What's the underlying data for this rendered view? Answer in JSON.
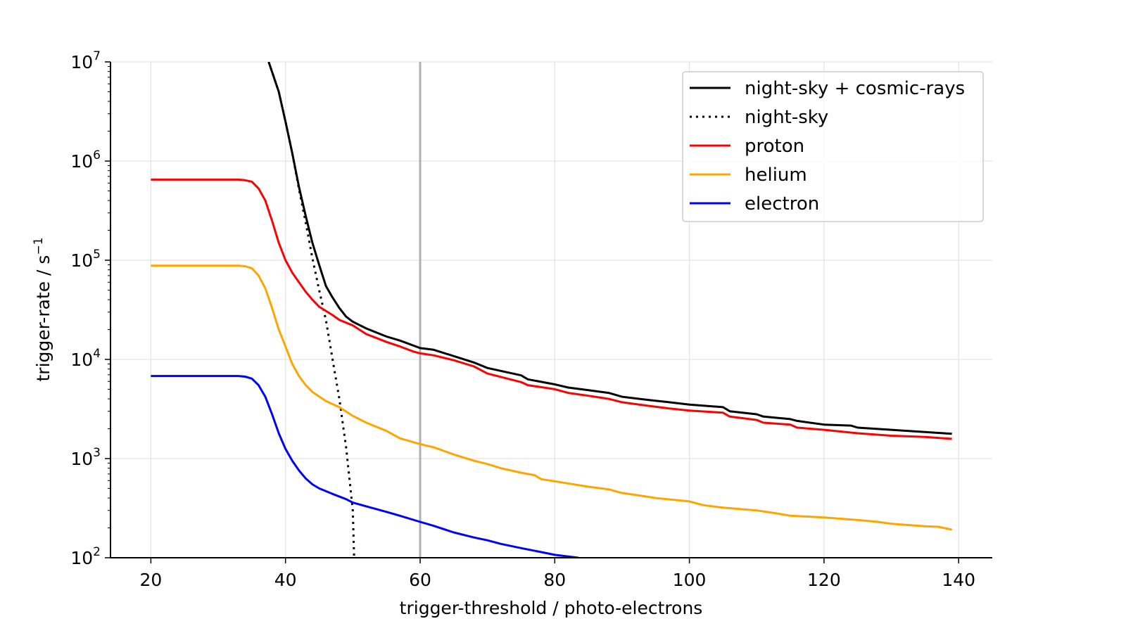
{
  "chart_data": {
    "type": "line",
    "xlabel": "trigger-threshold / photo-electrons",
    "ylabel": "trigger-rate / s",
    "ylabel_superscript": "−1",
    "xlim": [
      14,
      145
    ],
    "ylim": [
      100,
      10000000
    ],
    "yscale": "log",
    "grid": true,
    "legend_position": "top-right",
    "x_ticks": [
      20,
      40,
      60,
      80,
      100,
      120,
      140
    ],
    "y_ticks": [
      {
        "value": 100,
        "base": "10",
        "exp": "2"
      },
      {
        "value": 1000,
        "base": "10",
        "exp": "3"
      },
      {
        "value": 10000,
        "base": "10",
        "exp": "4"
      },
      {
        "value": 100000,
        "base": "10",
        "exp": "5"
      },
      {
        "value": 1000000,
        "base": "10",
        "exp": "6"
      },
      {
        "value": 10000000,
        "base": "10",
        "exp": "7"
      }
    ],
    "vline": {
      "x": 60,
      "color": "#b0b0b0"
    },
    "series": [
      {
        "name": "night-sky + cosmic-rays",
        "color": "#000000",
        "dash": "solid",
        "points": [
          [
            37.5,
            10000000
          ],
          [
            39,
            5000000
          ],
          [
            40,
            2500000
          ],
          [
            41,
            1200000
          ],
          [
            42,
            550000
          ],
          [
            43,
            280000
          ],
          [
            44,
            150000
          ],
          [
            45,
            90000
          ],
          [
            46,
            55000
          ],
          [
            47,
            42000
          ],
          [
            48,
            33000
          ],
          [
            49,
            27000
          ],
          [
            50,
            24000
          ],
          [
            52,
            20500
          ],
          [
            55,
            17000
          ],
          [
            57,
            15500
          ],
          [
            60,
            13000
          ],
          [
            62,
            12500
          ],
          [
            65,
            10800
          ],
          [
            68,
            9300
          ],
          [
            70,
            8200
          ],
          [
            75,
            6900
          ],
          [
            76,
            6300
          ],
          [
            80,
            5600
          ],
          [
            82,
            5200
          ],
          [
            85,
            4900
          ],
          [
            88,
            4600
          ],
          [
            90,
            4200
          ],
          [
            94,
            3900
          ],
          [
            97,
            3700
          ],
          [
            100,
            3500
          ],
          [
            105,
            3300
          ],
          [
            106,
            3000
          ],
          [
            110,
            2800
          ],
          [
            111,
            2650
          ],
          [
            115,
            2500
          ],
          [
            116,
            2400
          ],
          [
            120,
            2200
          ],
          [
            124,
            2150
          ],
          [
            125,
            2050
          ],
          [
            130,
            1950
          ],
          [
            135,
            1850
          ],
          [
            139,
            1780
          ]
        ]
      },
      {
        "name": "night-sky",
        "color": "#000000",
        "dash": "dotted",
        "points": [
          [
            37.5,
            10000000
          ],
          [
            39,
            5000000
          ],
          [
            40,
            2500000
          ],
          [
            41,
            1200000
          ],
          [
            42,
            520000
          ],
          [
            43,
            240000
          ],
          [
            44,
            105000
          ],
          [
            45,
            50000
          ],
          [
            46,
            25000
          ],
          [
            47,
            10000
          ],
          [
            48,
            4000
          ],
          [
            49,
            1300
          ],
          [
            50,
            300
          ],
          [
            50.2,
            100
          ]
        ]
      },
      {
        "name": "proton",
        "color": "#ff0000",
        "dash": "solid",
        "points": [
          [
            20,
            650000
          ],
          [
            33,
            650000
          ],
          [
            34,
            640000
          ],
          [
            35,
            620000
          ],
          [
            36,
            530000
          ],
          [
            37,
            400000
          ],
          [
            38,
            250000
          ],
          [
            39,
            150000
          ],
          [
            40,
            100000
          ],
          [
            41,
            75000
          ],
          [
            42,
            60000
          ],
          [
            43,
            48000
          ],
          [
            44,
            40000
          ],
          [
            45,
            34000
          ],
          [
            47,
            28000
          ],
          [
            48,
            25000
          ],
          [
            50,
            22000
          ],
          [
            52,
            18000
          ],
          [
            55,
            15000
          ],
          [
            57,
            13500
          ],
          [
            59,
            12000
          ],
          [
            60,
            11500
          ],
          [
            62,
            11000
          ],
          [
            65,
            9800
          ],
          [
            68,
            8500
          ],
          [
            70,
            7200
          ],
          [
            75,
            5900
          ],
          [
            76,
            5500
          ],
          [
            80,
            5000
          ],
          [
            82,
            4600
          ],
          [
            85,
            4300
          ],
          [
            88,
            4000
          ],
          [
            90,
            3700
          ],
          [
            94,
            3400
          ],
          [
            97,
            3200
          ],
          [
            100,
            3050
          ],
          [
            105,
            2900
          ],
          [
            106,
            2650
          ],
          [
            110,
            2450
          ],
          [
            111,
            2300
          ],
          [
            115,
            2200
          ],
          [
            116,
            2050
          ],
          [
            120,
            1950
          ],
          [
            125,
            1800
          ],
          [
            130,
            1700
          ],
          [
            135,
            1650
          ],
          [
            139,
            1580
          ]
        ]
      },
      {
        "name": "helium",
        "color": "#ffa500",
        "dash": "solid",
        "points": [
          [
            20,
            88000
          ],
          [
            33,
            88000
          ],
          [
            34,
            87000
          ],
          [
            35,
            83000
          ],
          [
            36,
            70000
          ],
          [
            37,
            52000
          ],
          [
            38,
            33000
          ],
          [
            39,
            20000
          ],
          [
            40,
            13500
          ],
          [
            41,
            9000
          ],
          [
            42,
            6800
          ],
          [
            43,
            5500
          ],
          [
            44,
            4700
          ],
          [
            46,
            3800
          ],
          [
            48,
            3300
          ],
          [
            50,
            2700
          ],
          [
            52,
            2300
          ],
          [
            55,
            1900
          ],
          [
            57,
            1600
          ],
          [
            60,
            1400
          ],
          [
            62,
            1300
          ],
          [
            65,
            1100
          ],
          [
            68,
            950
          ],
          [
            70,
            880
          ],
          [
            72,
            800
          ],
          [
            75,
            720
          ],
          [
            77,
            680
          ],
          [
            78,
            620
          ],
          [
            80,
            590
          ],
          [
            85,
            520
          ],
          [
            88,
            490
          ],
          [
            90,
            450
          ],
          [
            93,
            420
          ],
          [
            95,
            400
          ],
          [
            100,
            370
          ],
          [
            102,
            340
          ],
          [
            105,
            320
          ],
          [
            110,
            300
          ],
          [
            113,
            280
          ],
          [
            115,
            265
          ],
          [
            120,
            255
          ],
          [
            125,
            240
          ],
          [
            128,
            230
          ],
          [
            130,
            220
          ],
          [
            135,
            208
          ],
          [
            137,
            205
          ],
          [
            139,
            192
          ]
        ]
      },
      {
        "name": "electron",
        "color": "#0000ff",
        "dash": "solid",
        "points": [
          [
            20,
            6800
          ],
          [
            33,
            6800
          ],
          [
            34,
            6700
          ],
          [
            35,
            6400
          ],
          [
            36,
            5500
          ],
          [
            37,
            4200
          ],
          [
            38,
            2800
          ],
          [
            39,
            1800
          ],
          [
            40,
            1250
          ],
          [
            41,
            950
          ],
          [
            42,
            760
          ],
          [
            43,
            630
          ],
          [
            44,
            550
          ],
          [
            45,
            500
          ],
          [
            47,
            440
          ],
          [
            49,
            390
          ],
          [
            50,
            360
          ],
          [
            52,
            330
          ],
          [
            55,
            290
          ],
          [
            57,
            265
          ],
          [
            60,
            230
          ],
          [
            62,
            210
          ],
          [
            65,
            180
          ],
          [
            68,
            160
          ],
          [
            70,
            150
          ],
          [
            72,
            138
          ],
          [
            75,
            125
          ],
          [
            78,
            114
          ],
          [
            80,
            107
          ],
          [
            83.5,
            100
          ]
        ]
      }
    ]
  }
}
